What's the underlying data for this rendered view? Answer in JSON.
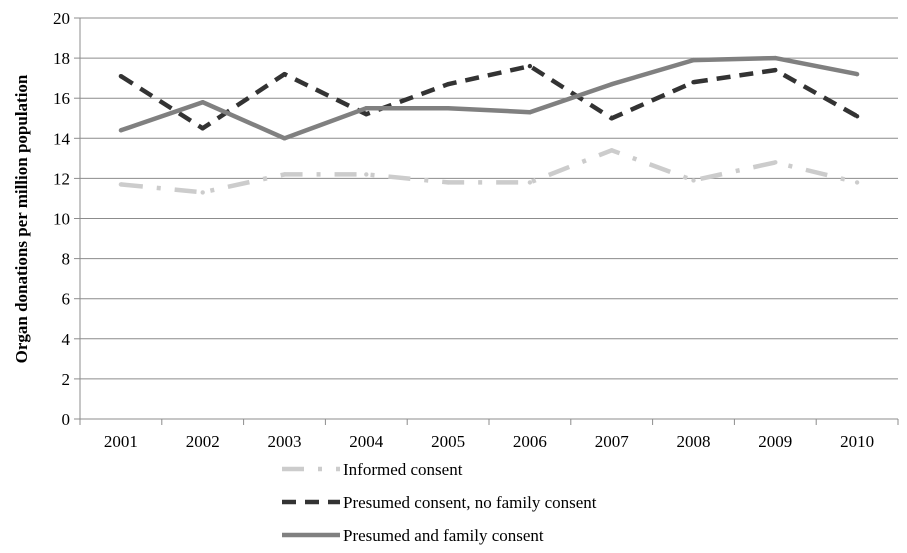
{
  "chart_data": {
    "type": "line",
    "title": "",
    "xlabel": "",
    "ylabel": "Organ donations per million population",
    "ylim": [
      0,
      20
    ],
    "yticks": [
      0,
      2,
      4,
      6,
      8,
      10,
      12,
      14,
      16,
      18,
      20
    ],
    "grid": "horizontal",
    "legend_position": "bottom",
    "categories": [
      "2001",
      "2002",
      "2003",
      "2004",
      "2005",
      "2006",
      "2007",
      "2008",
      "2009",
      "2010"
    ],
    "series": [
      {
        "name": "Informed consent",
        "values": [
          11.7,
          11.3,
          12.2,
          12.2,
          11.8,
          11.8,
          13.4,
          11.9,
          12.8,
          11.8
        ],
        "color": "#cccccc",
        "style": "dash-dot"
      },
      {
        "name": "Presumed consent, no family consent",
        "values": [
          17.1,
          14.5,
          17.2,
          15.2,
          16.7,
          17.6,
          15.0,
          16.8,
          17.4,
          15.1
        ],
        "color": "#333333",
        "style": "dash"
      },
      {
        "name": "Presumed and family consent",
        "values": [
          14.4,
          15.8,
          14.0,
          15.5,
          15.5,
          15.3,
          16.7,
          17.9,
          18.0,
          17.2
        ],
        "color": "#808080",
        "style": "solid"
      }
    ]
  }
}
